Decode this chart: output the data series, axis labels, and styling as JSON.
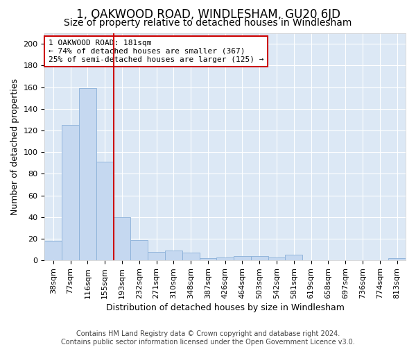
{
  "title": "1, OAKWOOD ROAD, WINDLESHAM, GU20 6JD",
  "subtitle": "Size of property relative to detached houses in Windlesham",
  "xlabel": "Distribution of detached houses by size in Windlesham",
  "ylabel": "Number of detached properties",
  "footer_line1": "Contains HM Land Registry data © Crown copyright and database right 2024.",
  "footer_line2": "Contains public sector information licensed under the Open Government Licence v3.0.",
  "categories": [
    "38sqm",
    "77sqm",
    "116sqm",
    "155sqm",
    "193sqm",
    "232sqm",
    "271sqm",
    "310sqm",
    "348sqm",
    "387sqm",
    "426sqm",
    "464sqm",
    "503sqm",
    "542sqm",
    "581sqm",
    "619sqm",
    "658sqm",
    "697sqm",
    "736sqm",
    "774sqm",
    "813sqm"
  ],
  "values": [
    18,
    125,
    159,
    91,
    40,
    19,
    8,
    9,
    7,
    2,
    3,
    4,
    4,
    3,
    5,
    0,
    0,
    0,
    0,
    0,
    2
  ],
  "bar_color": "#c5d8f0",
  "bar_edge_color": "#8ab0d8",
  "vline_color": "#cc0000",
  "annotation_text": "1 OAKWOOD ROAD: 181sqm\n← 74% of detached houses are smaller (367)\n25% of semi-detached houses are larger (125) →",
  "ylim": [
    0,
    210
  ],
  "yticks": [
    0,
    20,
    40,
    60,
    80,
    100,
    120,
    140,
    160,
    180,
    200
  ],
  "bg_color": "#dce8f5",
  "grid_color": "white",
  "title_fontsize": 12,
  "subtitle_fontsize": 10,
  "axis_label_fontsize": 9,
  "tick_fontsize": 8,
  "annotation_fontsize": 8,
  "footer_fontsize": 7
}
